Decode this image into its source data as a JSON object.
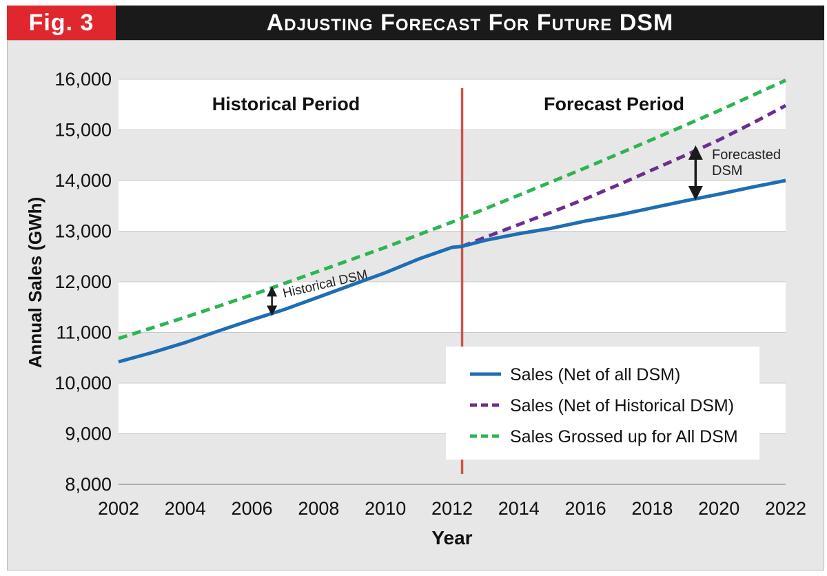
{
  "header": {
    "fig_label": "Fig. 3",
    "title": "Adjusting Forecast For Future DSM"
  },
  "colors": {
    "header_bg": "#1a1a1a",
    "fig_tag_bg": "#e1272e",
    "panel_bg": "#e7e7e7",
    "net_all": "#1f6db3",
    "net_hist": "#6b2f8f",
    "grossed": "#2db552",
    "divider": "#c8554a"
  },
  "chart_data": {
    "type": "line",
    "xlabel": "Year",
    "ylabel": "Annual Sales (GWh)",
    "xlim": [
      2002,
      2022
    ],
    "ylim": [
      8000,
      16000
    ],
    "x_ticks": [
      2002,
      2004,
      2006,
      2008,
      2010,
      2012,
      2014,
      2016,
      2018,
      2020,
      2022
    ],
    "x_tick_labels": [
      "2002",
      "2004",
      "2006",
      "2008",
      "2010",
      "2012",
      "2014",
      "2016",
      "2018",
      "2020",
      "2022"
    ],
    "y_ticks": [
      8000,
      9000,
      10000,
      11000,
      12000,
      13000,
      14000,
      15000,
      16000
    ],
    "y_tick_labels": [
      "8,000",
      "9,000",
      "10,000",
      "11,000",
      "12,000",
      "13,000",
      "14,000",
      "15,000",
      "16,000"
    ],
    "grid": "horizontal bands",
    "legend_position": "bottom-right",
    "period_labels": {
      "historical": "Historical Period",
      "forecast": "Forecast Period"
    },
    "divider_x": 2012.3,
    "series": [
      {
        "name": "Sales (Net of all DSM)",
        "style": "solid",
        "x": [
          2002,
          2003,
          2004,
          2005,
          2006,
          2007,
          2008,
          2009,
          2010,
          2011,
          2012,
          2012.3,
          2013,
          2014,
          2015,
          2016,
          2017,
          2018,
          2019,
          2020,
          2021,
          2022
        ],
        "y": [
          10420,
          10600,
          10800,
          11030,
          11250,
          11460,
          11700,
          11940,
          12180,
          12450,
          12680,
          12700,
          12820,
          12950,
          13060,
          13200,
          13320,
          13460,
          13600,
          13730,
          13870,
          14000
        ]
      },
      {
        "name": "Sales (Net of Historical DSM)",
        "style": "dashed",
        "x": [
          2012.3,
          2013,
          2014,
          2015,
          2016,
          2017,
          2018,
          2019,
          2020,
          2021,
          2022
        ],
        "y": [
          12700,
          12880,
          13130,
          13380,
          13640,
          13920,
          14210,
          14500,
          14800,
          15130,
          15480
        ]
      },
      {
        "name": "Sales Grossed up for All DSM",
        "style": "dashed",
        "x": [
          2002,
          2004,
          2006,
          2008,
          2010,
          2012,
          2014,
          2016,
          2018,
          2020,
          2022
        ],
        "y": [
          10880,
          11300,
          11740,
          12210,
          12680,
          13180,
          13710,
          14250,
          14810,
          15380,
          15980
        ]
      }
    ],
    "annotations": [
      {
        "text": "Historical DSM",
        "x": 2006.6,
        "y_from": 11360,
        "y_to": 11880
      },
      {
        "text": "Forecasted",
        "text2": "DSM",
        "x": 2019.3,
        "y_from": 13680,
        "y_to": 14620
      }
    ]
  }
}
